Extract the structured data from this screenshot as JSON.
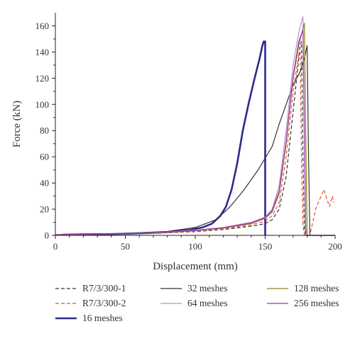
{
  "chart_data": {
    "type": "line",
    "xlabel": "Displacement (mm)",
    "ylabel": "Force (kN)",
    "xlim": [
      0,
      200
    ],
    "ylim": [
      0,
      170
    ],
    "xticks": [
      0,
      50,
      100,
      150,
      200
    ],
    "yticks": [
      0,
      20,
      40,
      60,
      80,
      100,
      120,
      140,
      160
    ],
    "grid": false,
    "legend_position": "bottom",
    "series": [
      {
        "name": "R7/3/300-1",
        "color": "#333333",
        "style": "dashed",
        "points": [
          [
            0,
            0.5
          ],
          [
            20,
            0.8
          ],
          [
            50,
            1.2
          ],
          [
            80,
            2
          ],
          [
            100,
            2.8
          ],
          [
            120,
            4.5
          ],
          [
            140,
            7
          ],
          [
            150,
            9
          ],
          [
            155,
            12
          ],
          [
            160,
            20
          ],
          [
            165,
            45
          ],
          [
            170,
            95
          ],
          [
            173,
            125
          ],
          [
            175,
            145
          ],
          [
            176,
            148
          ],
          [
            177,
            60
          ],
          [
            178,
            5
          ],
          [
            179,
            0
          ],
          [
            200,
            0
          ]
        ]
      },
      {
        "name": "R7/3/300-2",
        "color": "#e0553a",
        "style": "dashed",
        "points": [
          [
            0,
            0.5
          ],
          [
            20,
            0.8
          ],
          [
            50,
            1.2
          ],
          [
            80,
            2
          ],
          [
            100,
            3
          ],
          [
            120,
            5
          ],
          [
            140,
            8
          ],
          [
            150,
            11
          ],
          [
            155,
            15
          ],
          [
            160,
            25
          ],
          [
            165,
            60
          ],
          [
            170,
            110
          ],
          [
            174,
            138
          ],
          [
            175,
            140
          ],
          [
            176,
            55
          ],
          [
            177,
            8
          ],
          [
            178,
            0
          ],
          [
            182,
            0
          ],
          [
            184,
            10
          ],
          [
            186,
            20
          ],
          [
            188,
            25
          ],
          [
            190,
            30
          ],
          [
            192,
            35
          ],
          [
            194,
            28
          ],
          [
            196,
            22
          ],
          [
            198,
            30
          ],
          [
            199,
            25
          ]
        ]
      },
      {
        "name": "16 meshes",
        "color": "#2b2b8c",
        "style": "solid",
        "points": [
          [
            5,
            0.5
          ],
          [
            20,
            0.8
          ],
          [
            40,
            1
          ],
          [
            60,
            1.5
          ],
          [
            80,
            2.5
          ],
          [
            95,
            4
          ],
          [
            105,
            6
          ],
          [
            112,
            9
          ],
          [
            118,
            15
          ],
          [
            122,
            22
          ],
          [
            126,
            35
          ],
          [
            130,
            55
          ],
          [
            134,
            80
          ],
          [
            138,
            100
          ],
          [
            142,
            118
          ],
          [
            146,
            135
          ],
          [
            148,
            145
          ],
          [
            149,
            148
          ],
          [
            150,
            148
          ],
          [
            150,
            70
          ],
          [
            150,
            0
          ]
        ]
      },
      {
        "name": "32 meshes",
        "color": "#333333",
        "style": "solid",
        "points": [
          [
            0,
            0.5
          ],
          [
            40,
            1.2
          ],
          [
            80,
            3
          ],
          [
            100,
            6
          ],
          [
            115,
            12
          ],
          [
            125,
            22
          ],
          [
            135,
            35
          ],
          [
            145,
            50
          ],
          [
            155,
            68
          ],
          [
            160,
            85
          ],
          [
            165,
            100
          ],
          [
            170,
            115
          ],
          [
            175,
            125
          ],
          [
            178,
            135
          ],
          [
            180,
            145
          ],
          [
            181,
            60
          ],
          [
            182,
            0
          ],
          [
            200,
            0
          ]
        ]
      },
      {
        "name": "64 meshes",
        "color": "#c38ad6",
        "style": "solid",
        "points": [
          [
            0,
            0.5
          ],
          [
            40,
            1
          ],
          [
            80,
            2.5
          ],
          [
            100,
            4
          ],
          [
            120,
            6
          ],
          [
            140,
            10
          ],
          [
            150,
            14
          ],
          [
            155,
            20
          ],
          [
            160,
            38
          ],
          [
            165,
            80
          ],
          [
            170,
            130
          ],
          [
            174,
            155
          ],
          [
            177,
            167
          ],
          [
            178,
            80
          ],
          [
            179,
            5
          ],
          [
            180,
            0
          ],
          [
            200,
            0
          ]
        ]
      },
      {
        "name": "128 meshes",
        "color": "#8e7f20",
        "style": "solid",
        "points": [
          [
            0,
            0.5
          ],
          [
            40,
            1
          ],
          [
            80,
            2.2
          ],
          [
            100,
            3.5
          ],
          [
            120,
            5.5
          ],
          [
            140,
            9
          ],
          [
            150,
            13
          ],
          [
            155,
            18
          ],
          [
            160,
            32
          ],
          [
            165,
            70
          ],
          [
            170,
            120
          ],
          [
            174,
            145
          ],
          [
            178,
            162
          ],
          [
            179,
            80
          ],
          [
            180,
            0
          ],
          [
            200,
            0
          ]
        ]
      },
      {
        "name": "256 meshes",
        "color": "#9a3aa0",
        "style": "solid",
        "points": [
          [
            0,
            0.5
          ],
          [
            40,
            1
          ],
          [
            80,
            2.3
          ],
          [
            100,
            3.6
          ],
          [
            120,
            5.8
          ],
          [
            140,
            9.5
          ],
          [
            150,
            13.5
          ],
          [
            155,
            19
          ],
          [
            160,
            34
          ],
          [
            165,
            72
          ],
          [
            170,
            122
          ],
          [
            174,
            148
          ],
          [
            177,
            157
          ],
          [
            178,
            75
          ],
          [
            179,
            0
          ],
          [
            200,
            0
          ]
        ]
      }
    ]
  }
}
